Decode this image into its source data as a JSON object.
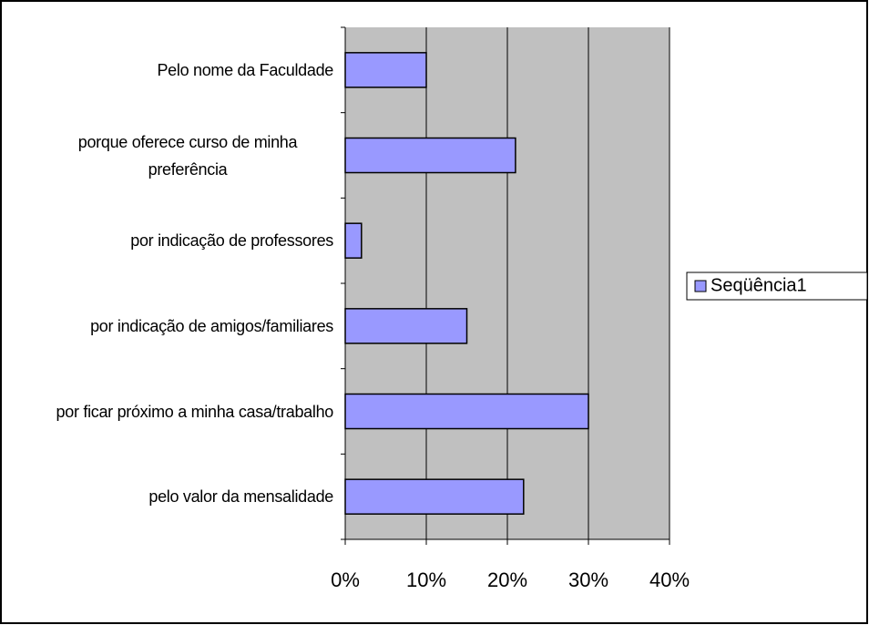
{
  "chart_data": {
    "type": "barh",
    "categories": [
      "Pelo nome da Faculdade",
      "porque oferece curso de minha preferência",
      "por indicação de professores",
      "por indicação de amigos/familiares",
      "por ficar próximo a minha casa/trabalho",
      "pelo valor da mensalidade"
    ],
    "series": [
      {
        "name": "Seqüência1",
        "color": "#9999ff",
        "values": [
          10,
          21,
          2,
          15,
          30,
          22
        ]
      }
    ],
    "xlim": [
      0,
      40
    ],
    "xticks": [
      {
        "value": 0,
        "label": "0%"
      },
      {
        "value": 10,
        "label": "10%"
      },
      {
        "value": 20,
        "label": "20%"
      },
      {
        "value": 30,
        "label": "30%"
      },
      {
        "value": 40,
        "label": "40%"
      }
    ],
    "grid": true,
    "legend": "right"
  }
}
